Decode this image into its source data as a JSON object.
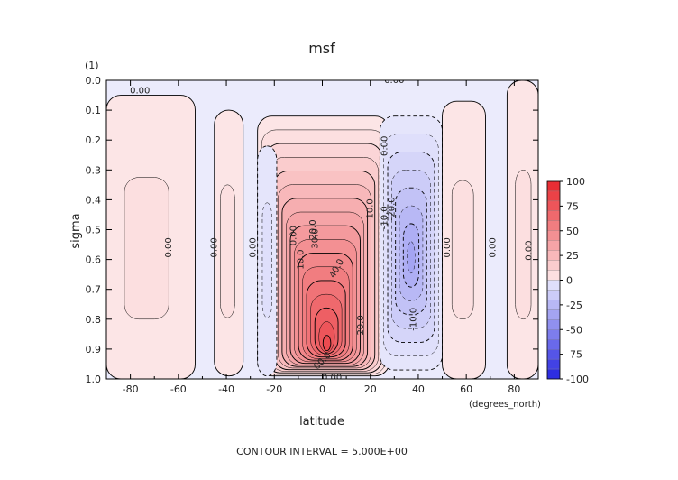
{
  "chart_data": {
    "type": "contour",
    "title": "msf",
    "units_label": "(1)",
    "xlabel": "latitude",
    "x_units": "(degrees_north)",
    "ylabel": "sigma",
    "xlim": [
      -90,
      90
    ],
    "ylim": [
      1.0,
      0.0
    ],
    "xticks": [
      -80,
      -60,
      -40,
      -20,
      0,
      20,
      40,
      60,
      80
    ],
    "xtick_labels": [
      "-80",
      "-60",
      "-40",
      "-20",
      "0",
      "20",
      "40",
      "60",
      "80"
    ],
    "yticks": [
      0.0,
      0.1,
      0.2,
      0.3,
      0.4,
      0.5,
      0.6,
      0.7,
      0.8,
      0.9,
      1.0
    ],
    "ytick_labels": [
      "0.0",
      "0.1",
      "0.2",
      "0.3",
      "0.4",
      "0.5",
      "0.6",
      "0.7",
      "0.8",
      "0.9",
      "1.0"
    ],
    "footer": "CONTOUR INTERVAL = 5.000E+00",
    "colorbar": {
      "ticks": [
        100,
        75,
        50,
        25,
        0,
        -25,
        -50,
        -75,
        -100
      ],
      "tick_labels": [
        "100",
        "75",
        "50",
        "25",
        "0",
        "-25",
        "-50",
        "-75",
        "-100"
      ],
      "positive_color": "#e8242a",
      "negative_color": "#2424e0",
      "zero_color": "#ffffff"
    },
    "cells": [
      {
        "lat_range": [
          -27,
          28
        ],
        "sigma_range": [
          0.12,
          0.99
        ],
        "peak": 80,
        "peak_lat": 2,
        "peak_sigma": 0.9
      },
      {
        "lat_range": [
          24,
          50
        ],
        "sigma_range": [
          0.12,
          0.97
        ],
        "peak": -35,
        "peak_lat": 37,
        "peak_sigma": 0.6
      },
      {
        "lat_range": [
          -45,
          -33
        ],
        "sigma_range": [
          0.1,
          0.99
        ],
        "peak": 2,
        "peak_lat": -40,
        "peak_sigma": 0.6
      },
      {
        "lat_range": [
          -90,
          -53
        ],
        "sigma_range": [
          0.05,
          1.0
        ],
        "peak": 2,
        "peak_lat": -75,
        "peak_sigma": 0.6
      },
      {
        "lat_range": [
          50,
          68
        ],
        "sigma_range": [
          0.07,
          1.0
        ],
        "peak": 2,
        "peak_lat": 58,
        "peak_sigma": 0.6
      },
      {
        "lat_range": [
          77,
          90
        ],
        "sigma_range": [
          0.0,
          1.0
        ],
        "peak": 2,
        "peak_lat": 84,
        "peak_sigma": 0.6
      },
      {
        "lat_range": [
          -27,
          -19
        ],
        "sigma_range": [
          0.22,
          0.99
        ],
        "peak": -3,
        "peak_lat": -23,
        "peak_sigma": 0.6
      }
    ],
    "contour_labels": [
      {
        "text": "0.00",
        "lat": -76,
        "sigma": 0.035,
        "rotate": 0
      },
      {
        "text": "0.00",
        "lat": 30,
        "sigma": 0.0,
        "rotate": 0
      },
      {
        "text": "0.00",
        "lat": -64,
        "sigma": 0.56,
        "rotate": -90
      },
      {
        "text": "0.00",
        "lat": -45,
        "sigma": 0.56,
        "rotate": -90
      },
      {
        "text": "0.00",
        "lat": -29,
        "sigma": 0.56,
        "rotate": -90
      },
      {
        "text": "0.00",
        "lat": -12,
        "sigma": 0.52,
        "rotate": -90
      },
      {
        "text": "0.00",
        "lat": 26,
        "sigma": 0.22,
        "rotate": -90
      },
      {
        "text": "0.00",
        "lat": 52,
        "sigma": 0.56,
        "rotate": -90
      },
      {
        "text": "0.00",
        "lat": 71,
        "sigma": 0.56,
        "rotate": -90
      },
      {
        "text": "0.00",
        "lat": 86,
        "sigma": 0.57,
        "rotate": -90
      },
      {
        "text": "0.00",
        "lat": 4,
        "sigma": 0.995,
        "rotate": 0
      },
      {
        "text": "10.0",
        "lat": -9,
        "sigma": 0.6,
        "rotate": -90
      },
      {
        "text": "20.0",
        "lat": -4,
        "sigma": 0.5,
        "rotate": -90
      },
      {
        "text": "30.0",
        "lat": -3,
        "sigma": 0.53,
        "rotate": -90
      },
      {
        "text": "40.0",
        "lat": 6,
        "sigma": 0.63,
        "rotate": -60
      },
      {
        "text": "20.0",
        "lat": 16,
        "sigma": 0.82,
        "rotate": -90
      },
      {
        "text": "10.0",
        "lat": 20,
        "sigma": 0.43,
        "rotate": -90
      },
      {
        "text": "60.0",
        "lat": 0,
        "sigma": 0.94,
        "rotate": -45
      },
      {
        "text": "-10.0",
        "lat": 26,
        "sigma": 0.46,
        "rotate": -90
      },
      {
        "text": "-20.0",
        "lat": 29,
        "sigma": 0.43,
        "rotate": -90
      },
      {
        "text": "-10.0",
        "lat": 38,
        "sigma": 0.8,
        "rotate": -90
      }
    ]
  }
}
